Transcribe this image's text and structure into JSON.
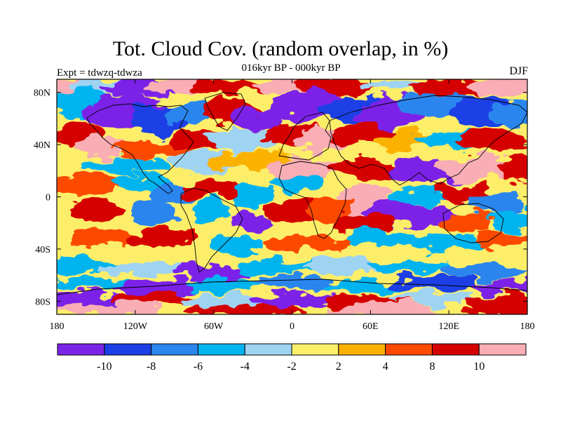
{
  "title": "Tot. Cloud Cov. (random overlap, in %)",
  "subtitle": "016kyr BP - 000kyr BP",
  "experiment": "Expt = tdwzq-tdwza",
  "season": "DJF",
  "chart_data": {
    "type": "heatmap",
    "projection": "equirectangular",
    "x_range": [
      -180,
      180
    ],
    "y_range": [
      -90,
      90
    ],
    "x_ticks": [
      {
        "value": -180,
        "label": "180"
      },
      {
        "value": -120,
        "label": "120W"
      },
      {
        "value": -60,
        "label": "60W"
      },
      {
        "value": 0,
        "label": "0"
      },
      {
        "value": 60,
        "label": "60E"
      },
      {
        "value": 120,
        "label": "120E"
      },
      {
        "value": 180,
        "label": "180"
      }
    ],
    "y_ticks": [
      {
        "value": 80,
        "label": "80N"
      },
      {
        "value": 40,
        "label": "40N"
      },
      {
        "value": 0,
        "label": "0"
      },
      {
        "value": -40,
        "label": "40S"
      },
      {
        "value": -80,
        "label": "80S"
      }
    ],
    "colorbar": {
      "boundaries": [
        -10,
        -8,
        -6,
        -4,
        -2,
        2,
        4,
        8,
        10
      ],
      "labels": [
        "-10",
        "-8",
        "-6",
        "-4",
        "-2",
        "2",
        "4",
        "8",
        "10"
      ],
      "colors": [
        "#7b24e8",
        "#1c3fe6",
        "#2b86ee",
        "#00b4f0",
        "#9fd3f2",
        "#fdee6a",
        "#fbb100",
        "#fc4a00",
        "#d50000",
        "#f8aeb4"
      ]
    }
  }
}
